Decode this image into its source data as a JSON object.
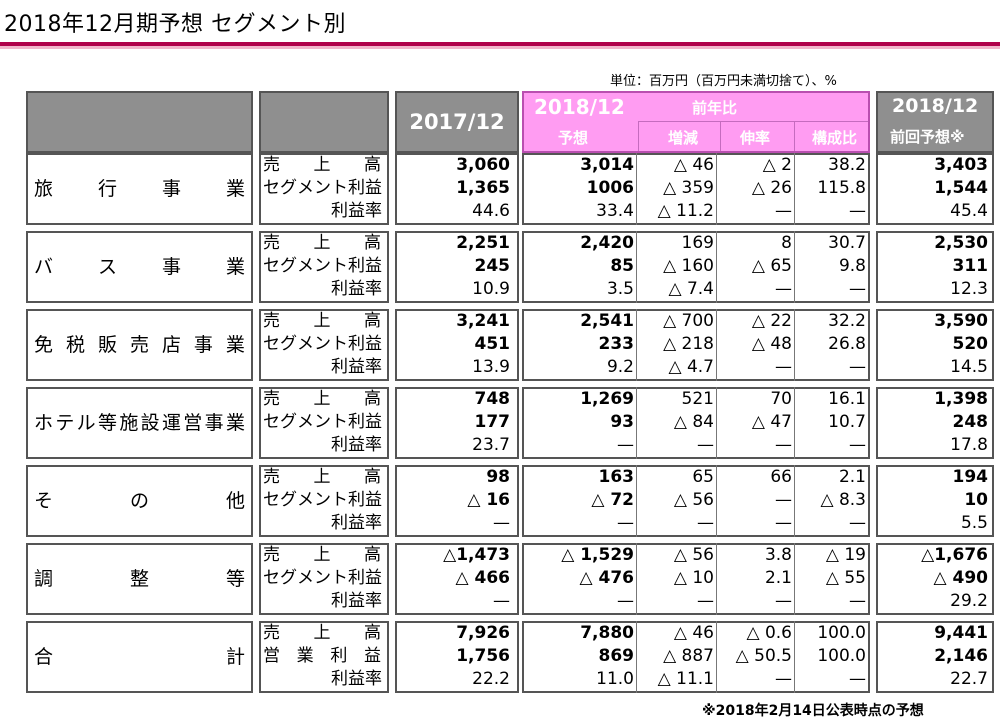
{
  "title": "2018年12月期予想 セグメント別",
  "unit_note": "単位：百万円（百万円未満切捨て）、%",
  "footnote": "※2018年2月14日公表時点の予想",
  "headers": {
    "prev_year": "2017/12",
    "current": "2018/12",
    "yoy": "前年比",
    "forecast": "予想",
    "change": "増減",
    "growth": "伸率",
    "share": "構成比",
    "prev_forecast_year": "2018/12",
    "prev_forecast": "前回予想※"
  },
  "segments": [
    {
      "name": [
        "旅",
        "行",
        "事",
        "業"
      ],
      "rows": [
        {
          "label": [
            "売",
            "上",
            "高"
          ],
          "prev": "3,060",
          "fcst": "3,014",
          "chg": "△ 46",
          "grw": "△ 2",
          "shr": "38.2",
          "pf": "3,403",
          "bold": true
        },
        {
          "label": [
            "セグメント利益"
          ],
          "prev": "1,365",
          "fcst": "1006",
          "chg": "△ 359",
          "grw": "△ 26",
          "shr": "115.8",
          "pf": "1,544",
          "bold": true
        },
        {
          "label": [
            "利益率"
          ],
          "prev": "44.6",
          "fcst": "33.4",
          "chg": "△ 11.2",
          "grw": "—",
          "shr": "—",
          "pf": "45.4",
          "bold": false
        }
      ]
    },
    {
      "name": [
        "バ",
        "ス",
        "事",
        "業"
      ],
      "rows": [
        {
          "label": [
            "売",
            "上",
            "高"
          ],
          "prev": "2,251",
          "fcst": "2,420",
          "chg": "169",
          "grw": "8",
          "shr": "30.7",
          "pf": "2,530",
          "bold": true
        },
        {
          "label": [
            "セグメント利益"
          ],
          "prev": "245",
          "fcst": "85",
          "chg": "△ 160",
          "grw": "△ 65",
          "shr": "9.8",
          "pf": "311",
          "bold": true
        },
        {
          "label": [
            "利益率"
          ],
          "prev": "10.9",
          "fcst": "3.5",
          "chg": "△ 7.4",
          "grw": "—",
          "shr": "—",
          "pf": "12.3",
          "bold": false
        }
      ]
    },
    {
      "name": [
        "免",
        "税",
        "販",
        "売",
        "店",
        "事",
        "業"
      ],
      "rows": [
        {
          "label": [
            "売",
            "上",
            "高"
          ],
          "prev": "3,241",
          "fcst": "2,541",
          "chg": "△ 700",
          "grw": "△ 22",
          "shr": "32.2",
          "pf": "3,590",
          "bold": true
        },
        {
          "label": [
            "セグメント利益"
          ],
          "prev": "451",
          "fcst": "233",
          "chg": "△ 218",
          "grw": "△ 48",
          "shr": "26.8",
          "pf": "520",
          "bold": true
        },
        {
          "label": [
            "利益率"
          ],
          "prev": "13.9",
          "fcst": "9.2",
          "chg": "△ 4.7",
          "grw": "—",
          "shr": "—",
          "pf": "14.5",
          "bold": false
        }
      ]
    },
    {
      "name": [
        "ホ",
        "テ",
        "ル",
        "等",
        "施",
        "設",
        "運",
        "営",
        "事",
        "業"
      ],
      "rows": [
        {
          "label": [
            "売",
            "上",
            "高"
          ],
          "prev": "748",
          "fcst": "1,269",
          "chg": "521",
          "grw": "70",
          "shr": "16.1",
          "pf": "1,398",
          "bold": true
        },
        {
          "label": [
            "セグメント利益"
          ],
          "prev": "177",
          "fcst": "93",
          "chg": "△ 84",
          "grw": "△ 47",
          "shr": "10.7",
          "pf": "248",
          "bold": true
        },
        {
          "label": [
            "利益率"
          ],
          "prev": "23.7",
          "fcst": "—",
          "chg": "—",
          "grw": "—",
          "shr": "—",
          "pf": "17.8",
          "bold": false
        }
      ]
    },
    {
      "name": [
        "そ",
        "の",
        "他"
      ],
      "rows": [
        {
          "label": [
            "売",
            "上",
            "高"
          ],
          "prev": "98",
          "fcst": "163",
          "chg": "65",
          "grw": "66",
          "shr": "2.1",
          "pf": "194",
          "bold": true
        },
        {
          "label": [
            "セグメント利益"
          ],
          "prev": "△ 16",
          "fcst": "△ 72",
          "chg": "△ 56",
          "grw": "—",
          "shr": "△ 8.3",
          "pf": "10",
          "bold": true
        },
        {
          "label": [
            "利益率"
          ],
          "prev": "—",
          "fcst": "—",
          "chg": "—",
          "grw": "—",
          "shr": "—",
          "pf": "5.5",
          "bold": false
        }
      ]
    },
    {
      "name": [
        "調",
        "整",
        "等"
      ],
      "rows": [
        {
          "label": [
            "売",
            "上",
            "高"
          ],
          "prev": "△1,473",
          "fcst": "△ 1,529",
          "chg": "△ 56",
          "grw": "3.8",
          "shr": "△ 19",
          "pf": "△1,676",
          "bold": true
        },
        {
          "label": [
            "セグメント利益"
          ],
          "prev": "△ 466",
          "fcst": "△ 476",
          "chg": "△ 10",
          "grw": "2.1",
          "shr": "△ 55",
          "pf": "△ 490",
          "bold": true
        },
        {
          "label": [
            "利益率"
          ],
          "prev": "—",
          "fcst": "—",
          "chg": "—",
          "grw": "—",
          "shr": "—",
          "pf": "29.2",
          "bold": false
        }
      ]
    },
    {
      "name": [
        "合",
        "計"
      ],
      "rows": [
        {
          "label": [
            "売",
            "上",
            "高"
          ],
          "prev": "7,926",
          "fcst": "7,880",
          "chg": "△ 46",
          "grw": "△ 0.6",
          "shr": "100.0",
          "pf": "9,441",
          "bold": true
        },
        {
          "label": [
            "営",
            "業",
            "利",
            "益"
          ],
          "prev": "1,756",
          "fcst": "869",
          "chg": "△ 887",
          "grw": "△ 50.5",
          "shr": "100.0",
          "pf": "2,146",
          "bold": true
        },
        {
          "label": [
            "利益率"
          ],
          "prev": "22.2",
          "fcst": "11.0",
          "chg": "△ 11.1",
          "grw": "—",
          "shr": "—",
          "pf": "22.7",
          "bold": false
        }
      ]
    }
  ]
}
